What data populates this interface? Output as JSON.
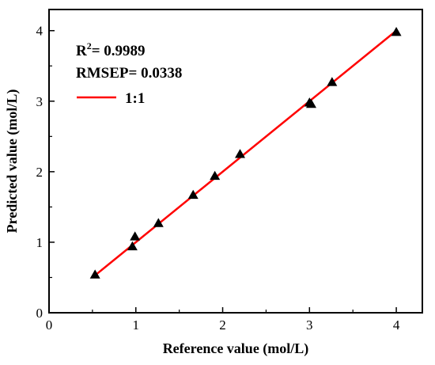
{
  "chart_data": {
    "type": "scatter",
    "xlabel": "Reference value (mol/L)",
    "ylabel": "Predicted value (mol/L)",
    "xlim": [
      0,
      4.3
    ],
    "ylim": [
      0,
      4.3
    ],
    "x_ticks": [
      0,
      1,
      2,
      3,
      4
    ],
    "y_ticks": [
      0,
      1,
      2,
      3,
      4
    ],
    "x_tick_labels": [
      "0",
      "1",
      "2",
      "3",
      "4"
    ],
    "y_tick_labels": [
      "0",
      "1",
      "2",
      "3",
      "4"
    ],
    "grid": false,
    "points": [
      {
        "x": 0.53,
        "y": 0.54
      },
      {
        "x": 0.96,
        "y": 0.94
      },
      {
        "x": 0.99,
        "y": 1.08
      },
      {
        "x": 1.26,
        "y": 1.27
      },
      {
        "x": 1.66,
        "y": 1.67
      },
      {
        "x": 1.91,
        "y": 1.94
      },
      {
        "x": 2.2,
        "y": 2.25
      },
      {
        "x": 3.0,
        "y": 2.98
      },
      {
        "x": 3.02,
        "y": 2.96
      },
      {
        "x": 3.26,
        "y": 3.27
      },
      {
        "x": 4.0,
        "y": 3.98
      }
    ],
    "fit_line": {
      "name": "1:1",
      "x": [
        0.53,
        4.0
      ],
      "y": [
        0.53,
        4.0
      ],
      "color": "#ff0000"
    },
    "annotations": {
      "r2_prefix": "R",
      "r2_sup": "2",
      "r2_value": "= 0.9989",
      "rmsep": "RMSEP= 0.0338"
    },
    "legend": {
      "position": "top-left",
      "entries": [
        "1:1"
      ]
    },
    "marker_color": "#000000"
  }
}
